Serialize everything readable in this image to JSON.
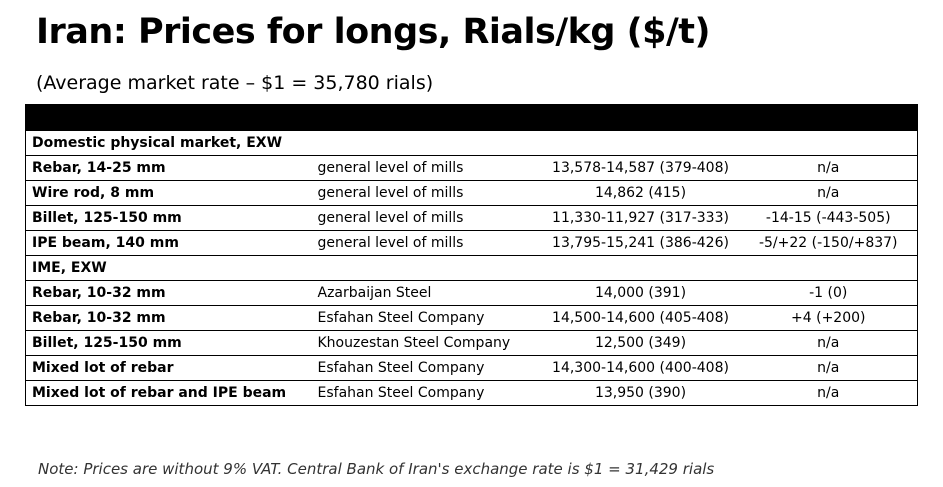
{
  "header": {
    "title": "Iran: Prices for longs, Rials/kg ($/t)",
    "subtitle": "(Average market rate – $1 = 35,780 rials)"
  },
  "table": {
    "sections": [
      {
        "label": "Domestic physical market, EXW",
        "rows": [
          {
            "product": "Rebar, 14-25 mm",
            "source": "general level of mills",
            "price": "13,578-14,587 (379-408)",
            "change": "n/a"
          },
          {
            "product": "Wire rod, 8 mm",
            "source": "general level of mills",
            "price": "14,862 (415)",
            "change": "n/a"
          },
          {
            "product": "Billet, 125-150 mm",
            "source": "general level of mills",
            "price": "11,330-11,927 (317-333)",
            "change": "-14-15 (-443-505)"
          },
          {
            "product": "IPE beam, 140 mm",
            "source": "general level of mills",
            "price": "13,795-15,241 (386-426)",
            "change": "-5/+22 (-150/+837)"
          }
        ]
      },
      {
        "label": "IME, EXW",
        "rows": [
          {
            "product": "Rebar, 10-32 mm",
            "source": "Azarbaijan Steel",
            "price": "14,000 (391)",
            "change": "-1 (0)"
          },
          {
            "product": "Rebar, 10-32 mm",
            "source": "Esfahan Steel Company",
            "price": "14,500-14,600 (405-408)",
            "change": "+4 (+200)"
          },
          {
            "product": "Billet, 125-150 mm",
            "source": "Khouzestan Steel Company",
            "price": "12,500 (349)",
            "change": "n/a"
          },
          {
            "product": "Mixed lot of rebar",
            "source": "Esfahan Steel Company",
            "price": "14,300-14,600 (400-408)",
            "change": "n/a"
          },
          {
            "product": "Mixed lot of rebar and IPE beam",
            "source": "Esfahan Steel Company",
            "price": "13,950 (390)",
            "change": "n/a"
          }
        ]
      }
    ]
  },
  "footer": {
    "note": "Note: Prices are without 9% VAT. Central Bank of Iran's exchange rate is $1 = 31,429 rials"
  },
  "colors": {
    "header_bar": "#000000",
    "text": "#000000",
    "note_text": "#333333"
  }
}
